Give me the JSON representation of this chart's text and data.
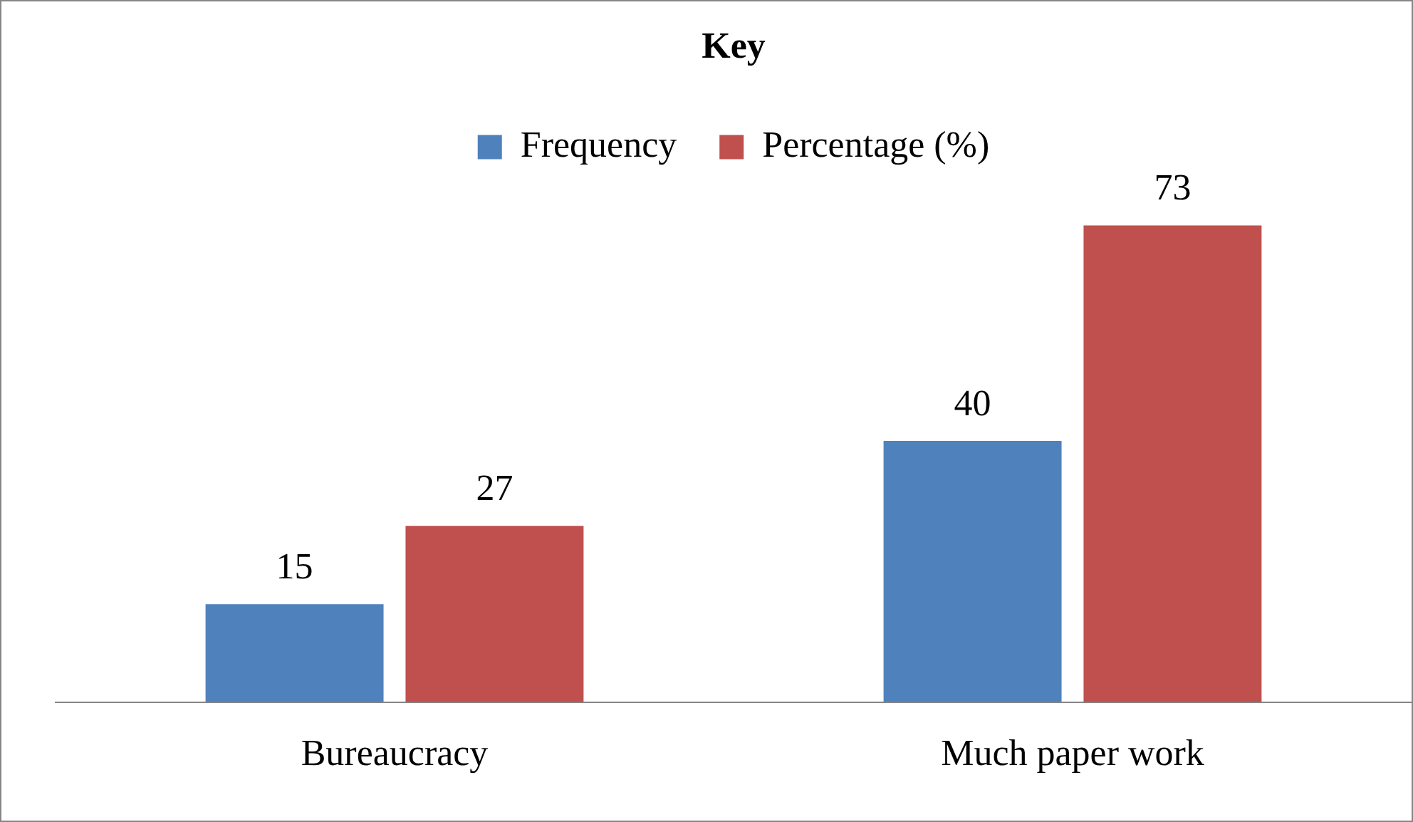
{
  "chart_data": {
    "type": "bar",
    "legend_title": "Key",
    "categories": [
      "Bureaucracy",
      "Much paper work"
    ],
    "series": [
      {
        "name": "Frequency",
        "color": "#4f81bd",
        "values": [
          15,
          40
        ]
      },
      {
        "name": "Percentage (%)",
        "color": "#c0504d",
        "values": [
          27,
          73
        ]
      }
    ],
    "data_labels": true,
    "legend": "top",
    "grid": false
  }
}
